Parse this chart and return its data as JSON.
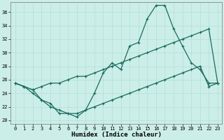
{
  "xlabel": "Humidex (Indice chaleur)",
  "background_color": "#cceee8",
  "line_color": "#1a6b5e",
  "xlim": [
    -0.5,
    23.5
  ],
  "ylim": [
    19.5,
    37.5
  ],
  "yticks": [
    20,
    22,
    24,
    26,
    28,
    30,
    32,
    34,
    36
  ],
  "xticks": [
    0,
    1,
    2,
    3,
    4,
    5,
    6,
    7,
    8,
    9,
    10,
    11,
    12,
    13,
    14,
    15,
    16,
    17,
    18,
    19,
    20,
    21,
    22,
    23
  ],
  "series1_x": [
    0,
    1,
    2,
    3,
    4,
    5,
    6,
    7,
    8,
    9,
    10,
    11,
    12,
    13,
    14,
    15,
    16,
    17,
    18,
    19,
    20,
    21,
    22,
    23
  ],
  "series1_y": [
    25.5,
    25.0,
    24.5,
    23.0,
    22.5,
    21.0,
    21.0,
    20.5,
    21.5,
    24.0,
    27.0,
    28.5,
    27.5,
    31.0,
    31.5,
    35.0,
    37.0,
    37.0,
    33.5,
    31.0,
    28.5,
    27.5,
    25.5,
    25.5
  ],
  "series2_x": [
    0,
    1,
    2,
    3,
    4,
    5,
    6,
    7,
    8,
    9,
    10,
    11,
    12,
    13,
    14,
    15,
    16,
    17,
    18,
    19,
    20,
    21,
    22,
    23
  ],
  "series2_y": [
    25.5,
    25.0,
    24.5,
    25.0,
    25.5,
    25.5,
    26.0,
    26.5,
    26.5,
    27.0,
    27.5,
    28.0,
    28.5,
    29.0,
    29.5,
    30.0,
    30.5,
    31.0,
    31.5,
    32.0,
    32.5,
    33.0,
    33.5,
    25.5
  ],
  "series3_x": [
    0,
    1,
    2,
    3,
    4,
    5,
    6,
    7,
    8,
    9,
    10,
    11,
    12,
    13,
    14,
    15,
    16,
    17,
    18,
    19,
    20,
    21,
    22,
    23
  ],
  "series3_y": [
    25.5,
    25.0,
    24.0,
    23.0,
    22.0,
    21.5,
    21.0,
    21.0,
    21.5,
    22.0,
    22.5,
    23.0,
    23.5,
    24.0,
    24.5,
    25.0,
    25.5,
    26.0,
    26.5,
    27.0,
    27.5,
    28.0,
    25.0,
    25.5
  ]
}
